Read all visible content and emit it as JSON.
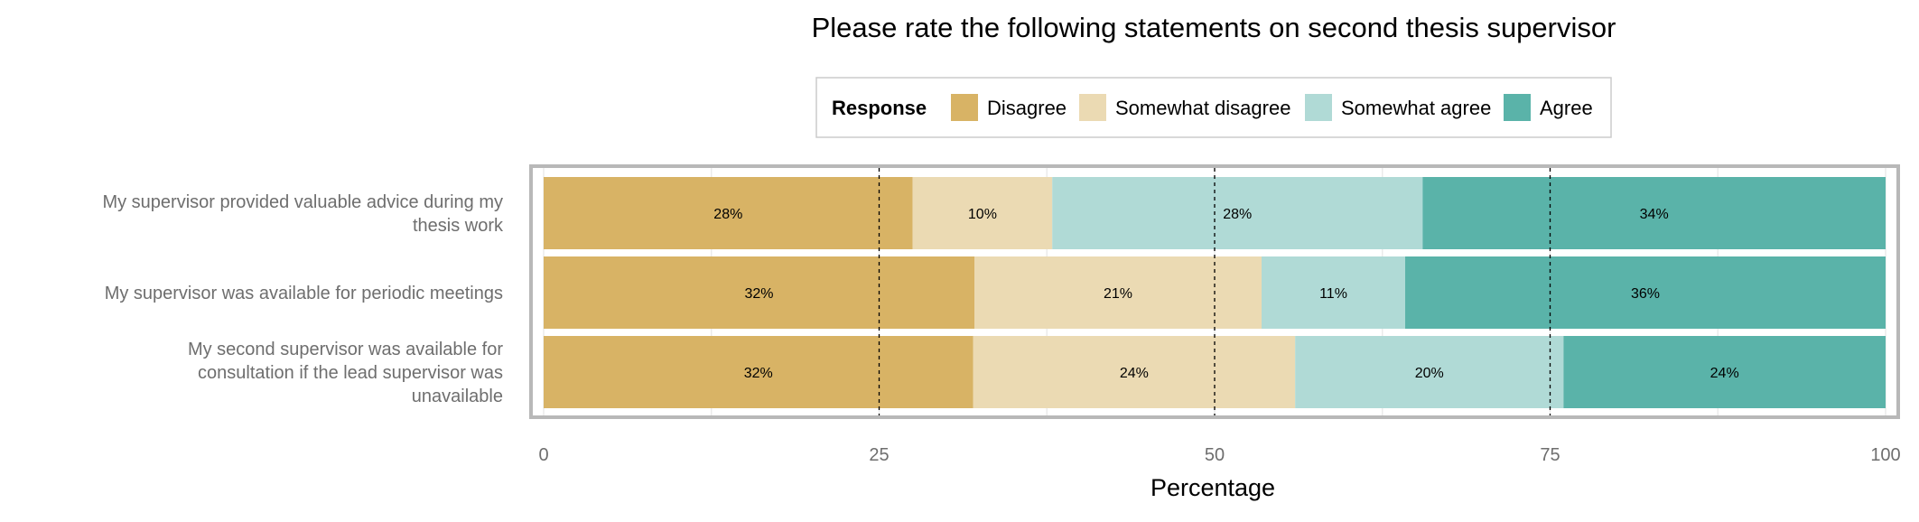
{
  "chart_data": {
    "type": "bar",
    "orientation": "horizontal",
    "stacked": true,
    "title": "Please rate the following statements on second thesis supervisor",
    "xlabel": "Percentage",
    "ylabel": "",
    "xlim": [
      0,
      100
    ],
    "x_ticks": [
      "0",
      "25",
      "50",
      "75",
      "100"
    ],
    "grid": true,
    "legend": {
      "title": "Response",
      "placement": "top-center",
      "entries": [
        "Disagree",
        "Somewhat disagree",
        "Somewhat agree",
        "Agree"
      ]
    },
    "categories": [
      "My supervisor provided valuable advice during my thesis work",
      "My supervisor was available for periodic meetings",
      "My second supervisor was available for consultation if the lead supervisor was unavailable"
    ],
    "series": [
      {
        "name": "Disagree",
        "color": "#d8b365",
        "values": [
          27.5,
          32.1,
          32.0
        ],
        "labels": [
          "28%",
          "32%",
          "32%"
        ]
      },
      {
        "name": "Somewhat disagree",
        "color": "#ebdab3",
        "values": [
          10.4,
          21.4,
          24.0
        ],
        "labels": [
          "10%",
          "21%",
          "24%"
        ]
      },
      {
        "name": "Somewhat agree",
        "color": "#b0dad6",
        "values": [
          27.6,
          10.7,
          20.0
        ],
        "labels": [
          "28%",
          "11%",
          "20%"
        ]
      },
      {
        "name": "Agree",
        "color": "#5ab3a9",
        "values": [
          34.5,
          35.8,
          24.0
        ],
        "labels": [
          "34%",
          "36%",
          "24%"
        ]
      }
    ]
  }
}
